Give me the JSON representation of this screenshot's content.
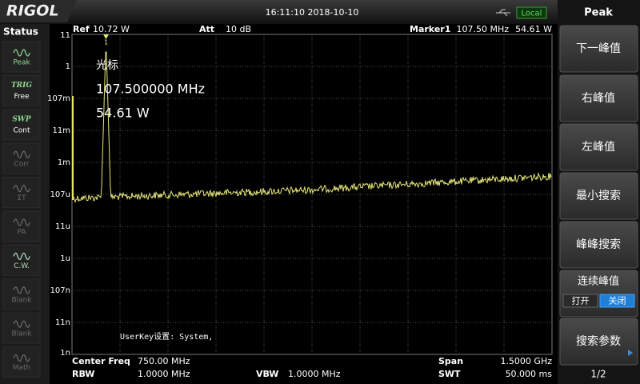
{
  "header": {
    "logo": "RIGOL",
    "datetime": "16:11:10 2018-10-10",
    "mode": "Local"
  },
  "status": {
    "title": "Status",
    "items": [
      {
        "label": "Peak",
        "color": "#8fd88f"
      },
      {
        "tag": "TRIG",
        "label": "Free",
        "color": "#8fd88f"
      },
      {
        "tag": "SWP",
        "label": "Cont",
        "color": "#8fd88f"
      },
      {
        "label": "Corr",
        "color": "#6a6a6a"
      },
      {
        "label": "ΣT",
        "color": "#6a6a6a"
      },
      {
        "label": "PA",
        "color": "#6a6a6a"
      },
      {
        "label": "C.W.",
        "color": "#b8d8b8"
      },
      {
        "label": "Blank",
        "color": "#6a6a6a"
      },
      {
        "label": "Blank",
        "color": "#6a6a6a"
      },
      {
        "label": "Math",
        "color": "#6a6a6a"
      }
    ]
  },
  "plot": {
    "ref_label": "Ref",
    "ref_value": "10.72 W",
    "att_label": "Att",
    "att_value": "10 dB",
    "marker_label": "Marker1",
    "marker_freq": "107.50 MHz",
    "marker_amp": "54.61 W",
    "marker_id": "1",
    "y_labels": [
      "11",
      "1",
      "107m",
      "11m",
      "1m",
      "107u",
      "11u",
      "1u",
      "107n",
      "11n",
      "1n"
    ],
    "readout": [
      "光标",
      "107.500000 MHz",
      "54.61 W"
    ],
    "userkey": "UserKey设置:  System,"
  },
  "footer": {
    "center_label": "Center Freq",
    "center_value": "750.00 MHz",
    "span_label": "Span",
    "span_value": "1.5000 GHz",
    "rbw_label": "RBW",
    "rbw_value": "1.0000 MHz",
    "vbw_label": "VBW",
    "vbw_value": "1.0000 MHz",
    "swt_label": "SWT",
    "swt_value": "50.000 ms"
  },
  "menu": {
    "title": "Peak",
    "buttons": [
      "下一峰值",
      "右峰值",
      "左峰值",
      "最小搜索",
      "峰峰搜索",
      "连续峰值",
      "搜索参数"
    ],
    "toggle": {
      "on": "打开",
      "off": "关闭"
    },
    "page": "1/2"
  }
}
